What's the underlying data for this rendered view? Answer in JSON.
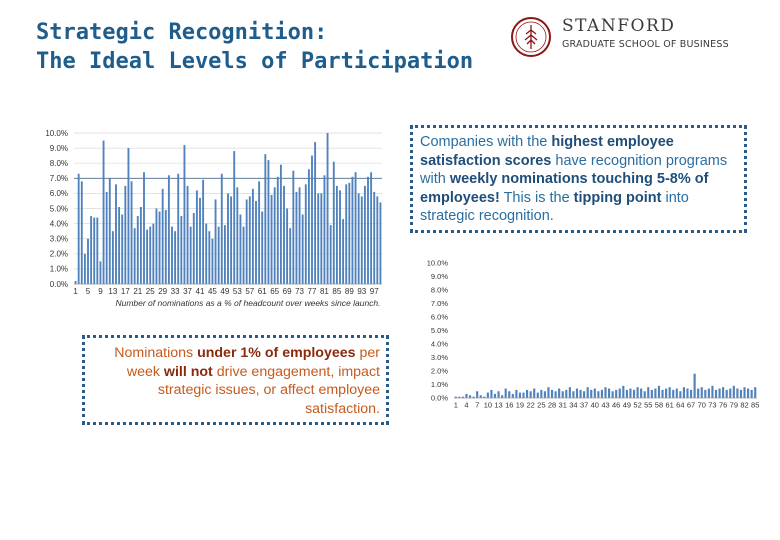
{
  "header": {
    "title_line1": "Strategic Recognition:",
    "title_line2": "The Ideal Levels of Participation"
  },
  "logo": {
    "name": "STANFORD",
    "subtitle": "GRADUATE SCHOOL OF BUSINESS",
    "icon": "stanford-tree-seal-icon"
  },
  "callout_top": {
    "p1": "Companies with the ",
    "b1": "highest employee satisfaction scores",
    "p2": " have recognition programs with ",
    "b2": "weekly nominations touching 5-8% of employees!",
    "p3": " This is the ",
    "b3": "tipping point",
    "p4": " into strategic recognition."
  },
  "callout_bottom": {
    "p1": "Nominations ",
    "b1": "under 1% of employees",
    "p2": " per week ",
    "b2": "will not",
    "p3": " drive engagement, impact strategic issues, or affect employee satisfaction."
  },
  "colors": {
    "title": "#1f5d8c",
    "bar": "#4f81bd",
    "callout_border": "#2b5b8b",
    "accent_blue": "#1f4e79",
    "accent_orange": "#c65a1e"
  },
  "chart_data": [
    {
      "type": "bar",
      "xlabel": "Number of nominations as a % of headcount over weeks since launch.",
      "ylabel": "",
      "ylim": [
        0,
        10
      ],
      "yticks": [
        "10.0%",
        "9.0%",
        "8.0%",
        "7.0%",
        "6.0%",
        "5.0%",
        "4.0%",
        "3.0%",
        "2.0%",
        "1.0%",
        "0.0%"
      ],
      "xticks": [
        "1",
        "5",
        "9",
        "13",
        "17",
        "21",
        "25",
        "29",
        "33",
        "37",
        "41",
        "45",
        "49",
        "53",
        "57",
        "61",
        "65",
        "69",
        "73",
        "77",
        "81",
        "85",
        "89",
        "93",
        "97"
      ],
      "reference_line": 7,
      "grid": true,
      "values": [
        0.2,
        7.3,
        6.8,
        2.0,
        3.0,
        4.5,
        4.4,
        4.4,
        1.5,
        9.5,
        6.1,
        7.0,
        3.5,
        6.6,
        5.1,
        4.6,
        6.5,
        9.0,
        6.8,
        3.7,
        4.5,
        5.1,
        7.4,
        3.6,
        3.8,
        4.0,
        5.0,
        4.8,
        6.3,
        4.9,
        7.2,
        3.8,
        3.5,
        7.3,
        4.5,
        9.2,
        6.5,
        3.8,
        4.7,
        6.2,
        5.7,
        6.9,
        4.0,
        3.5,
        3.0,
        5.6,
        3.8,
        7.3,
        3.9,
        6.0,
        5.8,
        8.8,
        6.4,
        4.6,
        3.8,
        5.6,
        5.8,
        6.3,
        5.5,
        6.8,
        4.8,
        8.6,
        8.2,
        5.9,
        6.4,
        7.1,
        7.9,
        6.5,
        5.0,
        3.7,
        7.5,
        6.1,
        6.4,
        4.6,
        6.6,
        7.6,
        8.5,
        9.4,
        6.0,
        6.0,
        7.2,
        10.0,
        3.9,
        8.1,
        6.5,
        6.2,
        4.3,
        6.6,
        6.7,
        7.1,
        7.4,
        6.0,
        5.8,
        6.5,
        7.1,
        7.4,
        6.1,
        5.8,
        5.4
      ]
    },
    {
      "type": "bar",
      "ylim": [
        0,
        10
      ],
      "yticks": [
        "10.0%",
        "9.0%",
        "8.0%",
        "7.0%",
        "6.0%",
        "5.0%",
        "4.0%",
        "3.0%",
        "2.0%",
        "1.0%",
        "0.0%"
      ],
      "xticks": [
        "1",
        "4",
        "7",
        "10",
        "13",
        "16",
        "19",
        "22",
        "25",
        "28",
        "31",
        "34",
        "37",
        "40",
        "43",
        "46",
        "49",
        "52",
        "55",
        "58",
        "61",
        "64",
        "67",
        "70",
        "73",
        "76",
        "79",
        "82",
        "85"
      ],
      "grid": false,
      "values": [
        0.1,
        0.1,
        0.1,
        0.3,
        0.2,
        0.1,
        0.5,
        0.2,
        0.1,
        0.4,
        0.6,
        0.3,
        0.5,
        0.2,
        0.7,
        0.5,
        0.3,
        0.6,
        0.4,
        0.4,
        0.6,
        0.5,
        0.7,
        0.4,
        0.6,
        0.5,
        0.8,
        0.6,
        0.5,
        0.7,
        0.5,
        0.6,
        0.8,
        0.5,
        0.7,
        0.6,
        0.5,
        0.8,
        0.6,
        0.7,
        0.5,
        0.6,
        0.8,
        0.7,
        0.5,
        0.6,
        0.7,
        0.9,
        0.6,
        0.7,
        0.6,
        0.8,
        0.7,
        0.5,
        0.8,
        0.6,
        0.7,
        0.9,
        0.6,
        0.7,
        0.8,
        0.6,
        0.7,
        0.5,
        0.8,
        0.7,
        0.6,
        1.8,
        0.7,
        0.8,
        0.6,
        0.7,
        0.9,
        0.6,
        0.7,
        0.8,
        0.6,
        0.7,
        0.9,
        0.7,
        0.6,
        0.8,
        0.7,
        0.6,
        0.8
      ]
    }
  ]
}
